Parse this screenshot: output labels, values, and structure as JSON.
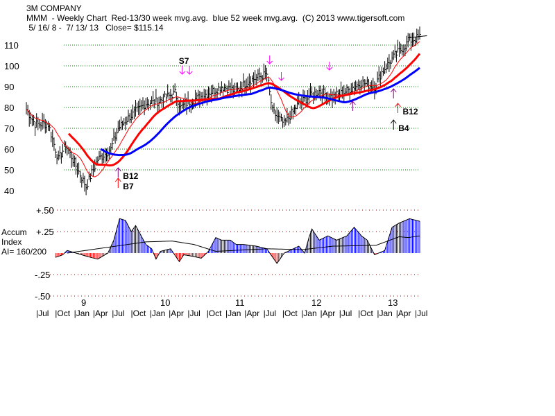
{
  "header": {
    "company": "3M COMPANY",
    "subtitle": "MMM  - Weekly Chart  Red-13/30 week mvg.avg.  blue 52 week mvg.avg.  (C) 2013 www.tigersoft.com",
    "range": " 5/ 16/ 8 -  7/ 13/ 13   Close= $115.14"
  },
  "chart_data": [
    {
      "type": "line",
      "title": "MMM Weekly Price",
      "ylim": [
        40,
        115
      ],
      "yticks": [
        "110",
        "100",
        "90",
        "80",
        "70",
        "60",
        "50",
        "40"
      ],
      "ytick_values": [
        110,
        100,
        90,
        80,
        70,
        60,
        50,
        40
      ],
      "x_units": "weeks since 5/16/08",
      "price_keypoints": [
        [
          0,
          79
        ],
        [
          6,
          72
        ],
        [
          15,
          72
        ],
        [
          22,
          55
        ],
        [
          27,
          62
        ],
        [
          34,
          52
        ],
        [
          41,
          42
        ],
        [
          49,
          55
        ],
        [
          58,
          60
        ],
        [
          63,
          70
        ],
        [
          70,
          75
        ],
        [
          82,
          82
        ],
        [
          91,
          83
        ],
        [
          102,
          87
        ],
        [
          106,
          80
        ],
        [
          110,
          82
        ],
        [
          125,
          87
        ],
        [
          134,
          90
        ],
        [
          144,
          88
        ],
        [
          153,
          93
        ],
        [
          165,
          96
        ],
        [
          169,
          78
        ],
        [
          177,
          72
        ],
        [
          187,
          82
        ],
        [
          201,
          88
        ],
        [
          210,
          85
        ],
        [
          220,
          88
        ],
        [
          230,
          92
        ],
        [
          239,
          90
        ],
        [
          244,
          97
        ],
        [
          253,
          105
        ],
        [
          263,
          112
        ],
        [
          270,
          114
        ]
      ],
      "series": [
        {
          "name": "Red-13 week mvg.avg.",
          "color": "#ff0000",
          "period": 13
        },
        {
          "name": "Red-30 week mvg.avg.",
          "color": "#ff0000",
          "period": 30
        },
        {
          "name": "blue 52 week mvg.avg.",
          "color": "#0000ff",
          "period": 52
        }
      ],
      "signals": [
        {
          "label": "S7",
          "week": 107,
          "price": 96,
          "dir": "down",
          "color": "#ff00ff"
        },
        {
          "label": "",
          "week": 112,
          "price": 96,
          "dir": "down",
          "color": "#ff00ff"
        },
        {
          "label": "",
          "week": 167,
          "price": 101,
          "dir": "down",
          "color": "#ff00ff"
        },
        {
          "label": "",
          "week": 175,
          "price": 93,
          "dir": "down",
          "color": "#ff00ff"
        },
        {
          "label": "",
          "week": 208,
          "price": 98,
          "dir": "down",
          "color": "#ff00ff"
        },
        {
          "label": "B7",
          "week": 63,
          "price": 46,
          "dir": "up",
          "color": "#ff0000"
        },
        {
          "label": "B12",
          "week": 63,
          "price": 51,
          "dir": "up",
          "color": "#800080"
        },
        {
          "label": "",
          "week": 224,
          "price": 83,
          "dir": "up",
          "color": "#800080"
        },
        {
          "label": "",
          "week": 252,
          "price": 89,
          "dir": "up",
          "color": "#800080"
        },
        {
          "label": "B12",
          "week": 255,
          "price": 82,
          "dir": "up",
          "color": "#ff0000"
        },
        {
          "label": "B4",
          "week": 252,
          "price": 74,
          "dir": "up",
          "color": "#000000"
        }
      ]
    },
    {
      "type": "area",
      "title": "Accum Index",
      "ylabel_lines": [
        "Accum",
        "Index",
        "AI= 160/200"
      ],
      "ylim": [
        -0.5,
        0.5
      ],
      "yticks": [
        "+.50",
        "+.25",
        "-.25",
        "-.50"
      ],
      "ytick_values": [
        0.5,
        0.25,
        -0.25,
        -0.5
      ],
      "ai_keypoints": [
        [
          0,
          0
        ],
        [
          2,
          -0.12
        ],
        [
          20,
          -0.05
        ],
        [
          25,
          -0.02
        ],
        [
          28,
          0.03
        ],
        [
          34,
          0
        ],
        [
          44,
          -0.05
        ],
        [
          49,
          -0.07
        ],
        [
          56,
          0
        ],
        [
          60,
          0.15
        ],
        [
          64,
          0.4
        ],
        [
          68,
          0.38
        ],
        [
          72,
          0.25
        ],
        [
          75,
          0.32
        ],
        [
          82,
          0.1
        ],
        [
          86,
          0.05
        ],
        [
          89,
          -0.07
        ],
        [
          92,
          0.02
        ],
        [
          99,
          0.05
        ],
        [
          105,
          -0.1
        ],
        [
          108,
          -0.02
        ],
        [
          115,
          -0.04
        ],
        [
          120,
          -0.06
        ],
        [
          125,
          0.02
        ],
        [
          130,
          0.18
        ],
        [
          134,
          0.15
        ],
        [
          140,
          0.15
        ],
        [
          144,
          0.1
        ],
        [
          149,
          0.1
        ],
        [
          158,
          0.08
        ],
        [
          165,
          0.05
        ],
        [
          172,
          -0.12
        ],
        [
          177,
          0
        ],
        [
          187,
          0.08
        ],
        [
          191,
          0
        ],
        [
          194,
          0.18
        ],
        [
          196,
          0.28
        ],
        [
          201,
          0.15
        ],
        [
          207,
          0.2
        ],
        [
          213,
          0.15
        ],
        [
          220,
          0.2
        ],
        [
          225,
          0.3
        ],
        [
          230,
          0.2
        ],
        [
          234,
          0.15
        ],
        [
          239,
          -0.02
        ],
        [
          246,
          0.03
        ],
        [
          251,
          0.3
        ],
        [
          256,
          0.35
        ],
        [
          263,
          0.4
        ],
        [
          270,
          0.37
        ]
      ],
      "ma_keypoints": [
        [
          28,
          0
        ],
        [
          82,
          0.13
        ],
        [
          100,
          0.14
        ],
        [
          115,
          0.1
        ],
        [
          130,
          0.02
        ],
        [
          165,
          0.05
        ],
        [
          190,
          0.04
        ],
        [
          210,
          0.08
        ],
        [
          240,
          0.09
        ],
        [
          256,
          0.19
        ],
        [
          262,
          0.18
        ],
        [
          270,
          0.2
        ]
      ],
      "colors": {
        "positive": "#0000ff",
        "negative": "#ff0000",
        "line": "#000000"
      },
      "year_labels": [
        "9",
        "10",
        "11",
        "12",
        "13"
      ],
      "month_labels": [
        "Jul",
        "Oct",
        "Jan",
        "Apr",
        "Jul",
        "Oct",
        "Jan",
        "Apr",
        "Jul",
        "Oct",
        "Jan",
        "Apr",
        "Jul",
        "Oct",
        "Jan",
        "Apr",
        "Jul",
        "Oct",
        "Jan",
        "Apr",
        "Jul"
      ]
    }
  ]
}
